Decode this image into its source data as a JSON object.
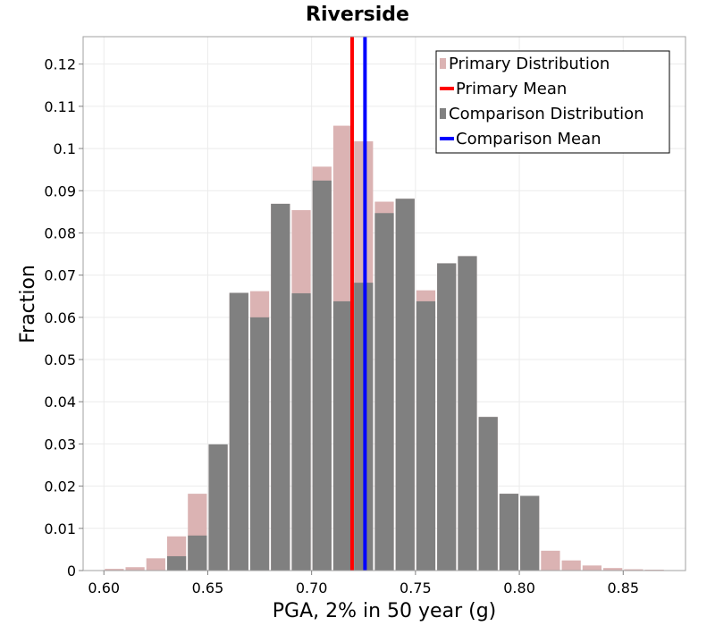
{
  "chart_data": {
    "type": "bar",
    "title": "Riverside",
    "xlabel": "PGA, 2% in 50 year (g)",
    "ylabel": "Fraction",
    "xlim": [
      0.59,
      0.88
    ],
    "ylim": [
      0,
      0.1265
    ],
    "bin_width": 0.01,
    "x_ticks": [
      0.6,
      0.65,
      0.7,
      0.75,
      0.8,
      0.85
    ],
    "x_tick_labels": [
      "0.60",
      "0.65",
      "0.70",
      "0.75",
      "0.80",
      "0.85"
    ],
    "y_ticks": [
      0,
      0.01,
      0.02,
      0.03,
      0.04,
      0.05,
      0.06,
      0.07,
      0.08,
      0.09,
      0.1,
      0.11,
      0.12
    ],
    "y_tick_labels": [
      "0",
      "0.01",
      "0.02",
      "0.03",
      "0.04",
      "0.05",
      "0.06",
      "0.07",
      "0.08",
      "0.09",
      "0.1",
      "0.11",
      "0.12"
    ],
    "grid": true,
    "legend_position": "top-right",
    "series": [
      {
        "name": "Primary Distribution",
        "kind": "histogram",
        "color": "#dbb3b3",
        "x": [
          0.6,
          0.61,
          0.62,
          0.63,
          0.64,
          0.65,
          0.66,
          0.67,
          0.68,
          0.69,
          0.7,
          0.71,
          0.72,
          0.73,
          0.74,
          0.75,
          0.76,
          0.77,
          0.78,
          0.79,
          0.8,
          0.81,
          0.82,
          0.83,
          0.84,
          0.85,
          0.86,
          0.87
        ],
        "values": [
          0.0004,
          0.0008,
          0.0029,
          0.0081,
          0.0182,
          0.0297,
          0.0658,
          0.0662,
          0.0869,
          0.0854,
          0.0957,
          0.1054,
          0.1017,
          0.0874,
          0.0881,
          0.0664,
          0.0728,
          0.0745,
          0.0364,
          0.0182,
          0.0177,
          0.0047,
          0.0024,
          0.0012,
          0.0006,
          0.0003,
          0.0002,
          0.0001
        ]
      },
      {
        "name": "Primary Mean",
        "kind": "vline",
        "color": "#ff0000",
        "x": 0.7195
      },
      {
        "name": "Comparison Distribution",
        "kind": "histogram",
        "color": "#808080",
        "x": [
          0.62,
          0.63,
          0.64,
          0.65,
          0.66,
          0.67,
          0.68,
          0.69,
          0.7,
          0.71,
          0.72,
          0.73,
          0.74,
          0.75,
          0.76,
          0.77,
          0.78,
          0.79,
          0.8
        ],
        "values": [
          0.0,
          0.0034,
          0.0083,
          0.0299,
          0.0658,
          0.06,
          0.0869,
          0.0657,
          0.0924,
          0.0638,
          0.0682,
          0.0847,
          0.0881,
          0.0638,
          0.0728,
          0.0745,
          0.0364,
          0.0182,
          0.0177
        ]
      },
      {
        "name": "Comparison Mean",
        "kind": "vline",
        "color": "#0000ff",
        "x": 0.7257
      }
    ]
  }
}
